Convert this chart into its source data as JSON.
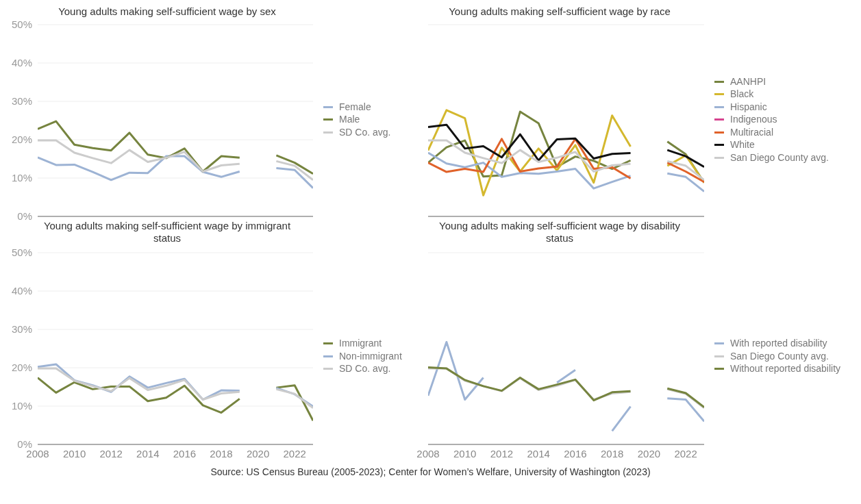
{
  "chart_data": [
    {
      "type": "line",
      "title": "Young adults making self-sufficient wage by sex",
      "x": [
        2008,
        2009,
        2010,
        2011,
        2012,
        2013,
        2014,
        2015,
        2016,
        2017,
        2018,
        2019,
        2020,
        2021,
        2022,
        2023
      ],
      "xlim": [
        2008,
        2023
      ],
      "xticks": [
        2008,
        2010,
        2012,
        2014,
        2016,
        2018,
        2020,
        2022
      ],
      "ylim": [
        0,
        50
      ],
      "yticks": [
        {
          "value": 0,
          "label": "0%"
        },
        {
          "value": 10,
          "label": "10%"
        },
        {
          "value": 20,
          "label": "20%"
        },
        {
          "value": 30,
          "label": "30%"
        },
        {
          "value": 40,
          "label": "40%"
        },
        {
          "value": 50,
          "label": "50%"
        }
      ],
      "grid": "y",
      "legend": "right",
      "tick_labels": "y",
      "series": [
        {
          "name": "Female",
          "color": "#9db3d4",
          "values": [
            15.4,
            13.4,
            13.5,
            11.6,
            9.5,
            11.4,
            11.3,
            15.7,
            15.7,
            11.6,
            10.3,
            11.7,
            null,
            12.6,
            12.1,
            7.4
          ]
        },
        {
          "name": "Male",
          "color": "#76843f",
          "values": [
            22.8,
            24.8,
            18.7,
            17.8,
            17.2,
            21.8,
            16.1,
            15.2,
            17.7,
            11.7,
            15.7,
            15.3,
            null,
            15.9,
            14.0,
            11.1
          ]
        },
        {
          "name": "SD Co. avg.",
          "color": "#cccccc",
          "values": [
            19.8,
            19.8,
            16.6,
            15.2,
            13.9,
            17.3,
            14.2,
            15.3,
            16.8,
            11.7,
            13.3,
            13.7,
            null,
            14.4,
            13.2,
            9.5
          ]
        }
      ]
    },
    {
      "type": "line",
      "title": "Young adults making self-sufficient wage by race",
      "x": [
        2008,
        2009,
        2010,
        2011,
        2012,
        2013,
        2014,
        2015,
        2016,
        2017,
        2018,
        2019,
        2020,
        2021,
        2022,
        2023
      ],
      "xlim": [
        2008,
        2023
      ],
      "xticks": [
        2008,
        2010,
        2012,
        2014,
        2016,
        2018,
        2020,
        2022
      ],
      "ylim": [
        0,
        50
      ],
      "grid": "y",
      "legend": "right",
      "tick_labels": false,
      "series": [
        {
          "name": "AANHPI",
          "color": "#76843f",
          "values": [
            14.0,
            18.0,
            19.8,
            10.4,
            10.7,
            27.3,
            24.3,
            12.9,
            15.6,
            14.5,
            12.4,
            14.6,
            null,
            19.5,
            16.2,
            8.8
          ]
        },
        {
          "name": "Black",
          "color": "#d4b82e",
          "values": [
            17.2,
            27.7,
            25.6,
            5.5,
            17.9,
            11.7,
            17.7,
            12.0,
            18.6,
            8.8,
            26.3,
            18.2,
            null,
            13.2,
            15.9,
            8.8
          ]
        },
        {
          "name": "Hispanic",
          "color": "#9db3d4",
          "values": [
            16.6,
            13.8,
            12.8,
            14.0,
            10.3,
            11.3,
            11.1,
            11.7,
            12.4,
            7.3,
            9.0,
            10.6,
            null,
            11.2,
            10.3,
            6.5
          ]
        },
        {
          "name": "Indigenous",
          "color": "#d6448f",
          "values": [
            null,
            null,
            null,
            null,
            null,
            null,
            null,
            null,
            null,
            null,
            null,
            null,
            null,
            null,
            null,
            null
          ]
        },
        {
          "name": "Multiracial",
          "color": "#e0622a",
          "values": [
            14.0,
            11.6,
            12.4,
            11.6,
            20.2,
            11.7,
            12.5,
            13.0,
            20.2,
            12.4,
            12.8,
            9.9,
            null,
            14.0,
            11.7,
            9.0
          ]
        },
        {
          "name": "White",
          "color": "#111111",
          "values": [
            23.3,
            23.9,
            17.7,
            18.3,
            15.4,
            21.4,
            14.6,
            20.1,
            20.3,
            15.1,
            16.3,
            16.5,
            null,
            17.3,
            15.7,
            12.9
          ]
        },
        {
          "name": "San Diego County avg.",
          "color": "#cccccc",
          "values": [
            19.8,
            19.8,
            16.6,
            15.2,
            13.9,
            17.3,
            14.2,
            15.3,
            16.8,
            11.7,
            13.3,
            13.7,
            null,
            14.4,
            13.2,
            9.5
          ]
        }
      ]
    },
    {
      "type": "line",
      "title": "Young adults making self-sufficient wage by immigrant status",
      "x": [
        2008,
        2009,
        2010,
        2011,
        2012,
        2013,
        2014,
        2015,
        2016,
        2017,
        2018,
        2019,
        2020,
        2021,
        2022,
        2023
      ],
      "xlim": [
        2008,
        2023
      ],
      "xticks": [
        2008,
        2010,
        2012,
        2014,
        2016,
        2018,
        2020,
        2022
      ],
      "ylim": [
        0,
        50
      ],
      "yticks": [
        {
          "value": 0,
          "label": "0%"
        },
        {
          "value": 10,
          "label": "10%"
        },
        {
          "value": 20,
          "label": "20%"
        },
        {
          "value": 30,
          "label": "30%"
        },
        {
          "value": 40,
          "label": "40%"
        },
        {
          "value": 50,
          "label": "50%"
        }
      ],
      "grid": "y",
      "legend": "right",
      "series": [
        {
          "name": "Immigrant",
          "color": "#76843f",
          "values": [
            17.4,
            13.5,
            16.2,
            14.4,
            15.1,
            15.1,
            11.3,
            12.2,
            15.3,
            10.2,
            8.3,
            11.9,
            null,
            14.8,
            15.4,
            6.2
          ]
        },
        {
          "name": "Non-immigrant",
          "color": "#9db3d4",
          "values": [
            20.2,
            20.9,
            16.7,
            15.4,
            13.7,
            17.7,
            14.8,
            16.0,
            17.1,
            11.7,
            14.1,
            14.0,
            null,
            14.7,
            13.1,
            9.9
          ]
        },
        {
          "name": "SD Co. avg.",
          "color": "#cccccc",
          "values": [
            19.8,
            19.8,
            16.6,
            15.2,
            13.9,
            17.3,
            14.2,
            15.3,
            16.8,
            11.7,
            13.3,
            13.7,
            null,
            14.4,
            13.2,
            9.5
          ]
        }
      ]
    },
    {
      "type": "line",
      "title": "Young adults making self-sufficient wage by disability status",
      "x": [
        2008,
        2009,
        2010,
        2011,
        2012,
        2013,
        2014,
        2015,
        2016,
        2017,
        2018,
        2019,
        2020,
        2021,
        2022,
        2023
      ],
      "xlim": [
        2008,
        2023
      ],
      "xticks": [
        2008,
        2010,
        2012,
        2014,
        2016,
        2018,
        2020,
        2022
      ],
      "ylim": [
        0,
        50
      ],
      "grid": "y",
      "legend": "right",
      "tick_labels": "x",
      "annotations": [
        "Source: US Census Bureau (2005-2023); Center for Women’s Welfare, University of Washington (2023)"
      ],
      "series": [
        {
          "name": "With reported disability",
          "color": "#9db3d4",
          "values": [
            12.7,
            26.7,
            11.7,
            17.4,
            null,
            null,
            null,
            16.1,
            19.4,
            null,
            3.5,
            9.9,
            null,
            12.0,
            11.7,
            6.0
          ]
        },
        {
          "name": "San Diego County avg.",
          "color": "#cccccc",
          "values": [
            19.8,
            19.8,
            16.6,
            15.2,
            13.9,
            17.3,
            14.2,
            15.3,
            16.8,
            11.7,
            13.3,
            13.7,
            null,
            14.4,
            13.2,
            9.5
          ]
        },
        {
          "name": "Without reported disability",
          "color": "#76843f",
          "values": [
            20.1,
            19.8,
            16.8,
            15.2,
            14.0,
            17.4,
            14.4,
            15.6,
            16.9,
            11.5,
            13.6,
            13.9,
            null,
            14.6,
            13.4,
            9.7
          ]
        }
      ]
    }
  ]
}
